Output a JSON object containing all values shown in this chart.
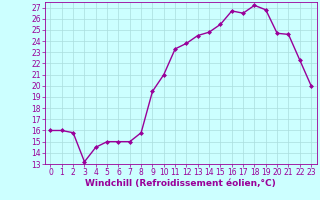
{
  "x": [
    0,
    1,
    2,
    3,
    4,
    5,
    6,
    7,
    8,
    9,
    10,
    11,
    12,
    13,
    14,
    15,
    16,
    17,
    18,
    19,
    20,
    21,
    22,
    23
  ],
  "y": [
    16,
    16,
    15.8,
    13.2,
    14.5,
    15,
    15,
    15,
    15.8,
    19.5,
    21,
    23.3,
    23.8,
    24.5,
    24.8,
    25.5,
    26.7,
    26.5,
    27.2,
    26.8,
    24.7,
    24.6,
    22.3,
    20.0
  ],
  "line_color": "#990099",
  "marker": "D",
  "marker_size": 2.0,
  "bg_color": "#ccffff",
  "grid_color": "#aadddd",
  "xlabel": "Windchill (Refroidissement éolien,°C)",
  "xlabel_fontsize": 6.5,
  "ylim": [
    13,
    27.5
  ],
  "xlim": [
    -0.5,
    23.5
  ],
  "yticks": [
    13,
    14,
    15,
    16,
    17,
    18,
    19,
    20,
    21,
    22,
    23,
    24,
    25,
    26,
    27
  ],
  "xticks": [
    0,
    1,
    2,
    3,
    4,
    5,
    6,
    7,
    8,
    9,
    10,
    11,
    12,
    13,
    14,
    15,
    16,
    17,
    18,
    19,
    20,
    21,
    22,
    23
  ],
  "tick_fontsize": 5.5,
  "line_width": 1.0
}
